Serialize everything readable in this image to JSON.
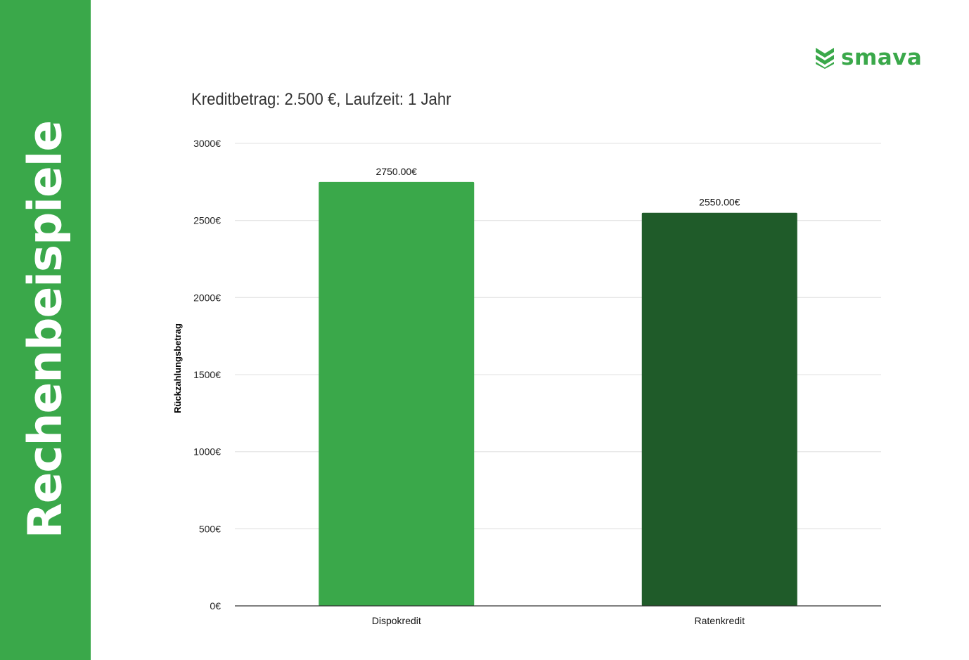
{
  "sidebar": {
    "title": "Rechenbeispiele"
  },
  "logo": {
    "text": "smava"
  },
  "colors": {
    "brand": "#3aa84a",
    "dispo": "#3aa84a",
    "raten": "#1f5b29",
    "grid": "#e6e6e6"
  },
  "chart_data": {
    "type": "bar",
    "title": "Kreditbetrag: 2.500 €, Laufzeit: 1 Jahr",
    "xlabel": "",
    "ylabel": "Rückzahlungsbetrag",
    "categories": [
      "Dispokredit",
      "Ratenkredit"
    ],
    "values": [
      2750,
      2550
    ],
    "data_labels": [
      "2750.00€",
      "2550.00€"
    ],
    "bar_colors": [
      "#3aa84a",
      "#1f5b29"
    ],
    "ylim": [
      0,
      3000
    ],
    "yticks": [
      0,
      500,
      1000,
      1500,
      2000,
      2500,
      3000
    ],
    "ytick_labels": [
      "0€",
      "500€",
      "1000€",
      "1500€",
      "2000€",
      "2500€",
      "3000€"
    ],
    "grid": true
  }
}
